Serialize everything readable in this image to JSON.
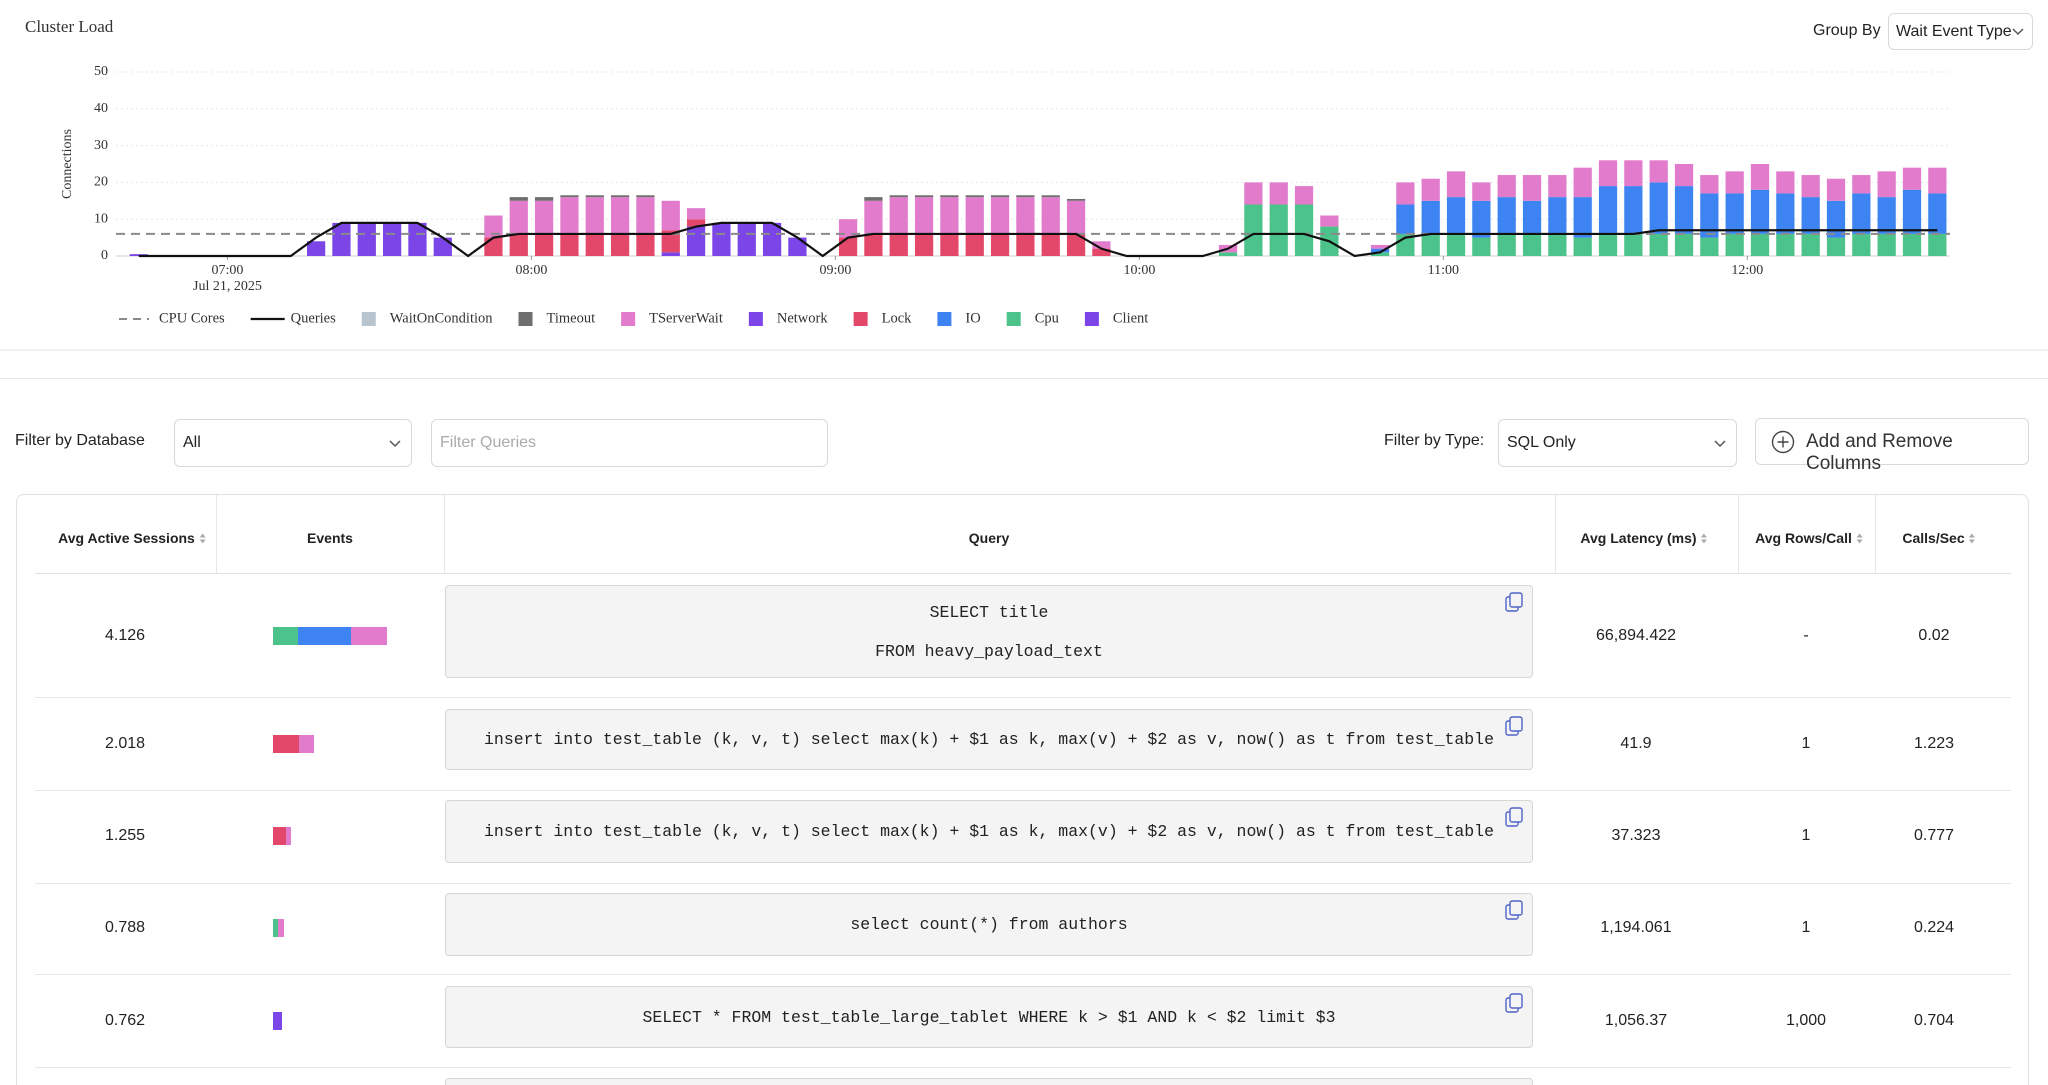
{
  "header": {
    "group_by_label": "Group By",
    "group_by_value": "Wait Event Type"
  },
  "chart_data": {
    "type": "stacked-bar",
    "title": "Cluster Load",
    "y_label": "Connections",
    "x": [
      "06:40",
      "06:45",
      "06:50",
      "06:55",
      "07:00",
      "07:05",
      "07:10",
      "07:15",
      "07:20",
      "07:25",
      "07:30",
      "07:35",
      "07:40",
      "07:45",
      "07:50",
      "07:55",
      "08:00",
      "08:05",
      "08:10",
      "08:15",
      "08:20",
      "08:25",
      "08:30",
      "08:35",
      "08:40",
      "08:45",
      "08:50",
      "08:55",
      "09:00",
      "09:05",
      "09:10",
      "09:15",
      "09:20",
      "09:25",
      "09:30",
      "09:35",
      "09:40",
      "09:45",
      "09:50",
      "09:55",
      "10:00",
      "10:05",
      "10:10",
      "10:15",
      "10:20",
      "10:25",
      "10:30",
      "10:35",
      "10:40",
      "10:45",
      "10:50",
      "10:55",
      "11:00",
      "11:05",
      "11:10",
      "11:15",
      "11:20",
      "11:25",
      "11:30",
      "11:35",
      "11:40",
      "11:45",
      "11:50",
      "11:55",
      "12:00",
      "12:05",
      "12:10",
      "12:15",
      "12:20",
      "12:25",
      "12:30",
      "12:35"
    ],
    "xlim": [
      "06:38",
      "12:40"
    ],
    "xticks": [
      "07:00",
      "08:00",
      "09:00",
      "10:00",
      "11:00",
      "12:00"
    ],
    "x_date_label": "Jul 21, 2025",
    "ylim": [
      0,
      50
    ],
    "yticks": [
      0,
      10,
      20,
      30,
      40,
      50
    ],
    "grid": true,
    "reference_lines": [
      {
        "name": "CPU Cores",
        "color": "#8a8a8a",
        "value": 6
      }
    ],
    "lines": [
      {
        "name": "Queries",
        "color": "#111111",
        "values": [
          0,
          0,
          0,
          0,
          0,
          0,
          0,
          5,
          9,
          9,
          9,
          9,
          5,
          0,
          5,
          6,
          6,
          6,
          6,
          6,
          6,
          6,
          8,
          9,
          9,
          9,
          5,
          0,
          5,
          6,
          6,
          6,
          6,
          6,
          6,
          6,
          6,
          6,
          2,
          0,
          0,
          0,
          0,
          2,
          6,
          6,
          6,
          4,
          0,
          1,
          5,
          6,
          6,
          6,
          6,
          6,
          6,
          6,
          6,
          6,
          7,
          7,
          7,
          7,
          7,
          7,
          7,
          7,
          7,
          7,
          7,
          7
        ]
      }
    ],
    "series": [
      {
        "name": "WaitOnCondition",
        "color": "#b8c4ce",
        "values": [
          0,
          0,
          0,
          0,
          0,
          0,
          0,
          0,
          0,
          0,
          0,
          0,
          0,
          0,
          0,
          0,
          0,
          0,
          0,
          0,
          0,
          0,
          0,
          0,
          0,
          0,
          0,
          0,
          0,
          0,
          0,
          0,
          0,
          0,
          0,
          0,
          0,
          0,
          0,
          0,
          0,
          0,
          0,
          0,
          0,
          0,
          0,
          0,
          0,
          0,
          0,
          0,
          0,
          0,
          0,
          0,
          0,
          0,
          0,
          0,
          0,
          0,
          0,
          0,
          0,
          0,
          0,
          0,
          0,
          0,
          0,
          0
        ]
      },
      {
        "name": "Timeout",
        "color": "#6e6e6e",
        "values": [
          0,
          0,
          0,
          0,
          0,
          0,
          0,
          0,
          0,
          0,
          0,
          0,
          0,
          0,
          0,
          1,
          1,
          0.5,
          0.5,
          0.5,
          0.5,
          0,
          0,
          0,
          0,
          0,
          0,
          0,
          0,
          1,
          0.5,
          0.5,
          0.5,
          0.5,
          0.5,
          0.5,
          0.5,
          0.5,
          0,
          0,
          0,
          0,
          0,
          0,
          0,
          0,
          0,
          0,
          0,
          0,
          0,
          0,
          0,
          0,
          0,
          0,
          0,
          0,
          0,
          0,
          0,
          0,
          0,
          0,
          0,
          0,
          0,
          0,
          0,
          0,
          0,
          0
        ]
      },
      {
        "name": "TServerWait",
        "color": "#e27bcb",
        "values": [
          0,
          0,
          0,
          0,
          0,
          0,
          0,
          0,
          0,
          0,
          0,
          0,
          0,
          0,
          6,
          9,
          9,
          10,
          10,
          10,
          10,
          8,
          3,
          0,
          0,
          0,
          0,
          0,
          5,
          9,
          10,
          10,
          10,
          10,
          10,
          10,
          10,
          9,
          2,
          0,
          0,
          0,
          0,
          2,
          6,
          6,
          5,
          3,
          0,
          1,
          6,
          6,
          7,
          5,
          6,
          7,
          6,
          8,
          7,
          7,
          6,
          6,
          5,
          6,
          7,
          6,
          6,
          6,
          5,
          7,
          6,
          7
        ]
      },
      {
        "name": "Network",
        "color": "#7b45e8",
        "values": [
          0,
          0,
          0,
          0,
          0,
          0,
          0,
          0,
          0,
          0,
          0,
          0,
          0,
          0,
          0,
          0,
          0,
          0,
          0,
          0,
          0,
          0,
          0,
          0,
          0,
          0,
          0,
          0,
          0,
          0,
          0,
          0,
          0,
          0,
          0,
          0,
          0,
          0,
          0,
          0,
          0,
          0,
          0,
          0,
          0,
          0,
          0,
          0,
          0,
          0,
          0,
          0,
          0,
          0,
          0,
          0,
          0,
          0,
          0,
          0,
          0,
          0,
          0,
          0,
          0,
          0,
          0,
          0,
          0,
          0,
          0,
          0
        ]
      },
      {
        "name": "Lock",
        "color": "#e3476a",
        "values": [
          0,
          0,
          0,
          0,
          0,
          0,
          0,
          0,
          0,
          0,
          0,
          0,
          0,
          0,
          5,
          6,
          6,
          6,
          6,
          6,
          6,
          6,
          2,
          0,
          0,
          0,
          0,
          0,
          5,
          6,
          6,
          6,
          6,
          6,
          6,
          6,
          6,
          6,
          2,
          0,
          0,
          0,
          0,
          0,
          0,
          0,
          0,
          0,
          0,
          0,
          0,
          0,
          0,
          0,
          0,
          0,
          0,
          0,
          0,
          0,
          0,
          0,
          0,
          0,
          0,
          0,
          0,
          0,
          0,
          0,
          0,
          0
        ]
      },
      {
        "name": "IO",
        "color": "#3d84f2",
        "values": [
          0,
          0,
          0,
          0,
          0,
          0,
          0,
          0,
          0,
          0,
          0,
          0,
          0,
          0,
          0,
          0,
          0,
          0,
          0,
          0,
          0,
          0,
          0,
          0,
          0,
          0,
          0,
          0,
          0,
          0,
          0,
          0,
          0,
          0,
          0,
          0,
          0,
          0,
          0,
          0,
          0,
          0,
          0,
          0,
          0,
          0,
          0,
          0,
          0,
          1,
          8,
          9,
          10,
          10,
          10,
          9,
          10,
          11,
          13,
          13,
          14,
          13,
          12,
          11,
          12,
          11,
          10,
          10,
          11,
          10,
          12,
          11
        ]
      },
      {
        "name": "Cpu",
        "color": "#4cc38a",
        "values": [
          0,
          0,
          0,
          0,
          0,
          0,
          0,
          0,
          0,
          0,
          0,
          0,
          0,
          0,
          0,
          0,
          0,
          0,
          0,
          0,
          0,
          0,
          0,
          0,
          0,
          0,
          0,
          0,
          0,
          0,
          0,
          0,
          0,
          0,
          0,
          0,
          0,
          0,
          0,
          0,
          0,
          0,
          0,
          1,
          14,
          14,
          14,
          8,
          0,
          1,
          6,
          6,
          6,
          5,
          6,
          6,
          6,
          5,
          6,
          6,
          6,
          6,
          5,
          6,
          6,
          6,
          6,
          5,
          6,
          6,
          6,
          6
        ]
      },
      {
        "name": "Client",
        "color": "#7b45e8",
        "values": [
          0.5,
          0,
          0,
          0,
          0,
          0,
          0,
          4,
          9,
          9,
          9,
          9,
          5,
          0,
          0,
          0,
          0,
          0,
          0,
          0,
          0,
          1,
          8,
          9,
          9,
          9,
          5,
          0,
          0,
          0,
          0,
          0,
          0,
          0,
          0,
          0,
          0,
          0,
          0,
          0,
          0,
          0,
          0,
          0,
          0,
          0,
          0,
          0,
          0,
          0,
          0,
          0,
          0,
          0,
          0,
          0,
          0,
          0,
          0,
          0,
          0,
          0,
          0,
          0,
          0,
          0,
          0,
          0,
          0,
          0,
          0,
          0
        ]
      }
    ]
  },
  "filters": {
    "database_label": "Filter by Database",
    "database_value": "All",
    "query_placeholder": "Filter Queries",
    "type_label": "Filter by Type:",
    "type_value": "SQL Only",
    "columns_button": "Add and Remove Columns"
  },
  "table": {
    "columns": [
      "Avg Active Sessions",
      "Events",
      "Query",
      "Avg Latency (ms)",
      "Avg Rows/Call",
      "Calls/Sec"
    ],
    "rows": [
      {
        "avg_active_sessions": "4.126",
        "events": [
          {
            "event": "Cpu",
            "value": 0.9
          },
          {
            "event": "IO",
            "value": 1.9
          },
          {
            "event": "TServerWait",
            "value": 1.3
          }
        ],
        "query": [
          "SELECT title",
          "FROM heavy_payload_text"
        ],
        "avg_latency": "66,894.422",
        "avg_rows_per_call": "-",
        "calls_per_sec": "0.02"
      },
      {
        "avg_active_sessions": "2.018",
        "events": [
          {
            "event": "Lock",
            "value": 0.94
          },
          {
            "event": "TServerWait",
            "value": 0.52
          }
        ],
        "query": [
          "insert into test_table (k, v, t) select max(k) + $1 as k, max(v) + $2 as v, now() as t from test_table"
        ],
        "avg_latency": "41.9",
        "avg_rows_per_call": "1",
        "calls_per_sec": "1.223"
      },
      {
        "avg_active_sessions": "1.255",
        "events": [
          {
            "event": "Lock",
            "value": 0.47
          },
          {
            "event": "TServerWait",
            "value": 0.19
          }
        ],
        "query": [
          "insert into test_table (k, v, t) select max(k) + $1 as k, max(v) + $2 as v, now() as t from test_table"
        ],
        "avg_latency": "37.323",
        "avg_rows_per_call": "1",
        "calls_per_sec": "0.777"
      },
      {
        "avg_active_sessions": "0.788",
        "events": [
          {
            "event": "Cpu",
            "value": 0.19
          },
          {
            "event": "TServerWait",
            "value": 0.19
          }
        ],
        "query": [
          "select count(*) from authors"
        ],
        "avg_latency": "1,194.061",
        "avg_rows_per_call": "1",
        "calls_per_sec": "0.224"
      },
      {
        "avg_active_sessions": "0.762",
        "events": [
          {
            "event": "Client",
            "value": 0.33
          }
        ],
        "query": [
          "SELECT * FROM test_table_large_tablet WHERE k > $1 AND k < $2 limit $3"
        ],
        "avg_latency": "1,056.37",
        "avg_rows_per_call": "1,000",
        "calls_per_sec": "0.704"
      }
    ]
  }
}
